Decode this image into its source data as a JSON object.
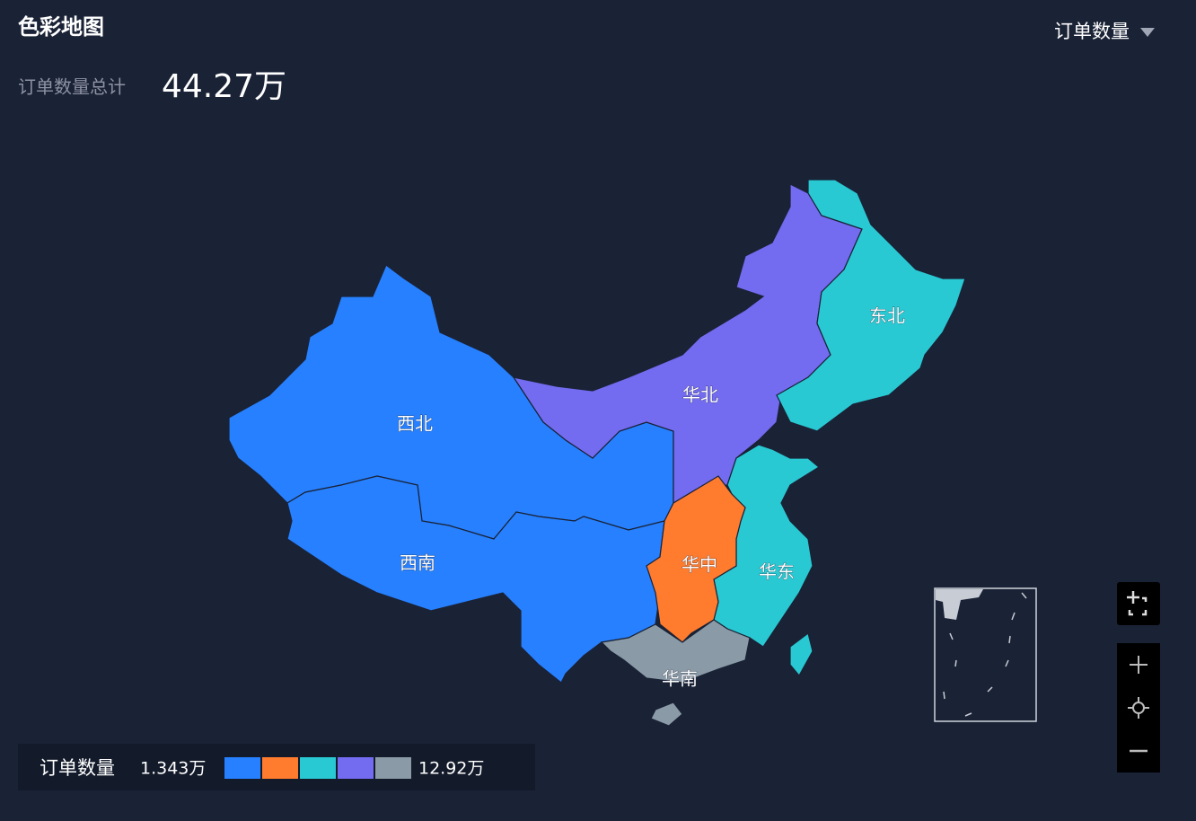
{
  "header": {
    "title": "色彩地图",
    "dropdown": "订单数量"
  },
  "summary": {
    "label": "订单数量总计",
    "value": "44.27万"
  },
  "regions": [
    {
      "name": "西北",
      "color": "#2680ff"
    },
    {
      "name": "西南",
      "color": "#2680ff"
    },
    {
      "name": "华北",
      "color": "#736bf0"
    },
    {
      "name": "东北",
      "color": "#29c9d3"
    },
    {
      "name": "华东",
      "color": "#29c9d3"
    },
    {
      "name": "华中",
      "color": "#ff7b2e"
    },
    {
      "name": "华南",
      "color": "#8a9aa6"
    }
  ],
  "legend": {
    "title": "订单数量",
    "min": "1.343万",
    "max": "12.92万",
    "colors": [
      "#2680ff",
      "#ff7b2e",
      "#29c9d3",
      "#736bf0",
      "#8a9aa6"
    ]
  }
}
